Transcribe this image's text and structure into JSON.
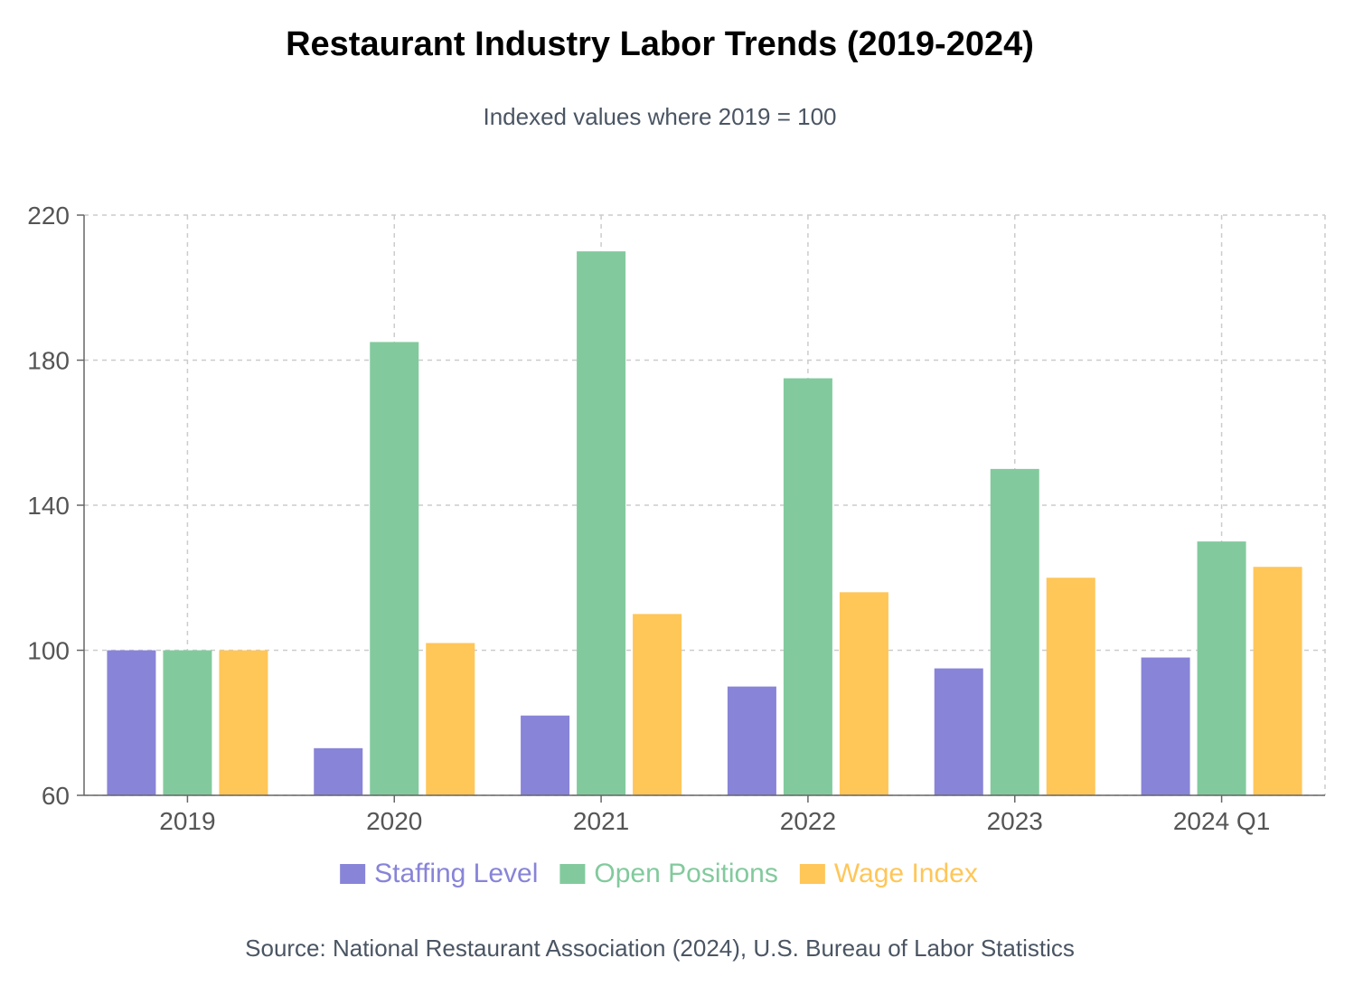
{
  "chart_data": {
    "type": "bar",
    "title": "Restaurant Industry Labor Trends (2019-2024)",
    "subtitle": "Indexed values where 2019 = 100",
    "source": "Source: National Restaurant Association (2024), U.S. Bureau of Labor Statistics",
    "categories": [
      "2019",
      "2020",
      "2021",
      "2022",
      "2023",
      "2024 Q1"
    ],
    "series": [
      {
        "name": "Staffing Level",
        "color": "#8884d8",
        "values": [
          100,
          73,
          82,
          90,
          95,
          98
        ]
      },
      {
        "name": "Open Positions",
        "color": "#82ca9d",
        "values": [
          100,
          185,
          210,
          175,
          150,
          130
        ]
      },
      {
        "name": "Wage Index",
        "color": "#ffc658",
        "values": [
          100,
          102,
          110,
          116,
          120,
          123
        ]
      }
    ],
    "ylim": [
      60,
      220
    ],
    "yticks": [
      60,
      100,
      140,
      180,
      220
    ],
    "grid": true,
    "legend_position": "bottom"
  }
}
